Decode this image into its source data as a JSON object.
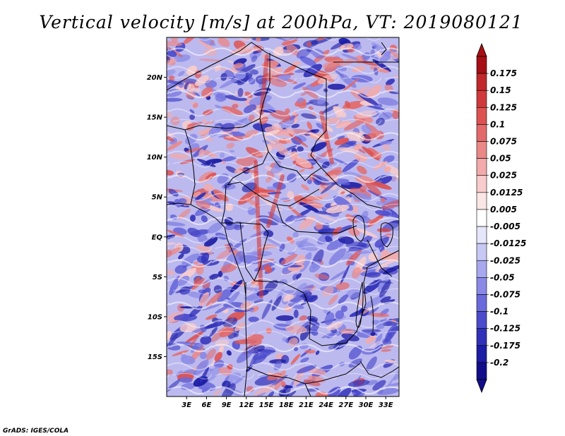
{
  "title": "Vertical velocity [m/s] at 200hPa, VT: 2019080121",
  "footer": "GrADS: IGES/COLA",
  "map": {
    "lon_range": [
      0,
      35
    ],
    "lat_range": [
      -20,
      25
    ],
    "lon_ticks": [
      "3E",
      "6E",
      "9E",
      "12E",
      "15E",
      "18E",
      "21E",
      "24E",
      "27E",
      "30E",
      "33E"
    ],
    "lon_values": [
      3,
      6,
      9,
      12,
      15,
      18,
      21,
      24,
      27,
      30,
      33
    ],
    "lat_ticks": [
      "20N",
      "15N",
      "10N",
      "5N",
      "EQ",
      "5S",
      "10S",
      "15S"
    ],
    "lat_values": [
      20,
      15,
      10,
      5,
      0,
      -5,
      -10,
      -15
    ]
  },
  "colorbar": {
    "labels": [
      "0.175",
      "0.15",
      "0.125",
      "0.1",
      "0.075",
      "0.05",
      "0.025",
      "0.0125",
      "0.005",
      "-0.005",
      "-0.0125",
      "-0.025",
      "-0.05",
      "-0.075",
      "-0.1",
      "-0.125",
      "-0.175",
      "-0.2"
    ],
    "colors": [
      "#a50f15",
      "#c0282c",
      "#d0393b",
      "#dc5252",
      "#e36a6a",
      "#ea8888",
      "#f2aaaa",
      "#f8cccc",
      "#fbe6e6",
      "#ffffff",
      "#e6e6fb",
      "#c8c8f5",
      "#a8a8ee",
      "#8a8ae6",
      "#6a6adc",
      "#4b4bcc",
      "#3030b8",
      "#1c1ca4",
      "#120e8a"
    ]
  }
}
